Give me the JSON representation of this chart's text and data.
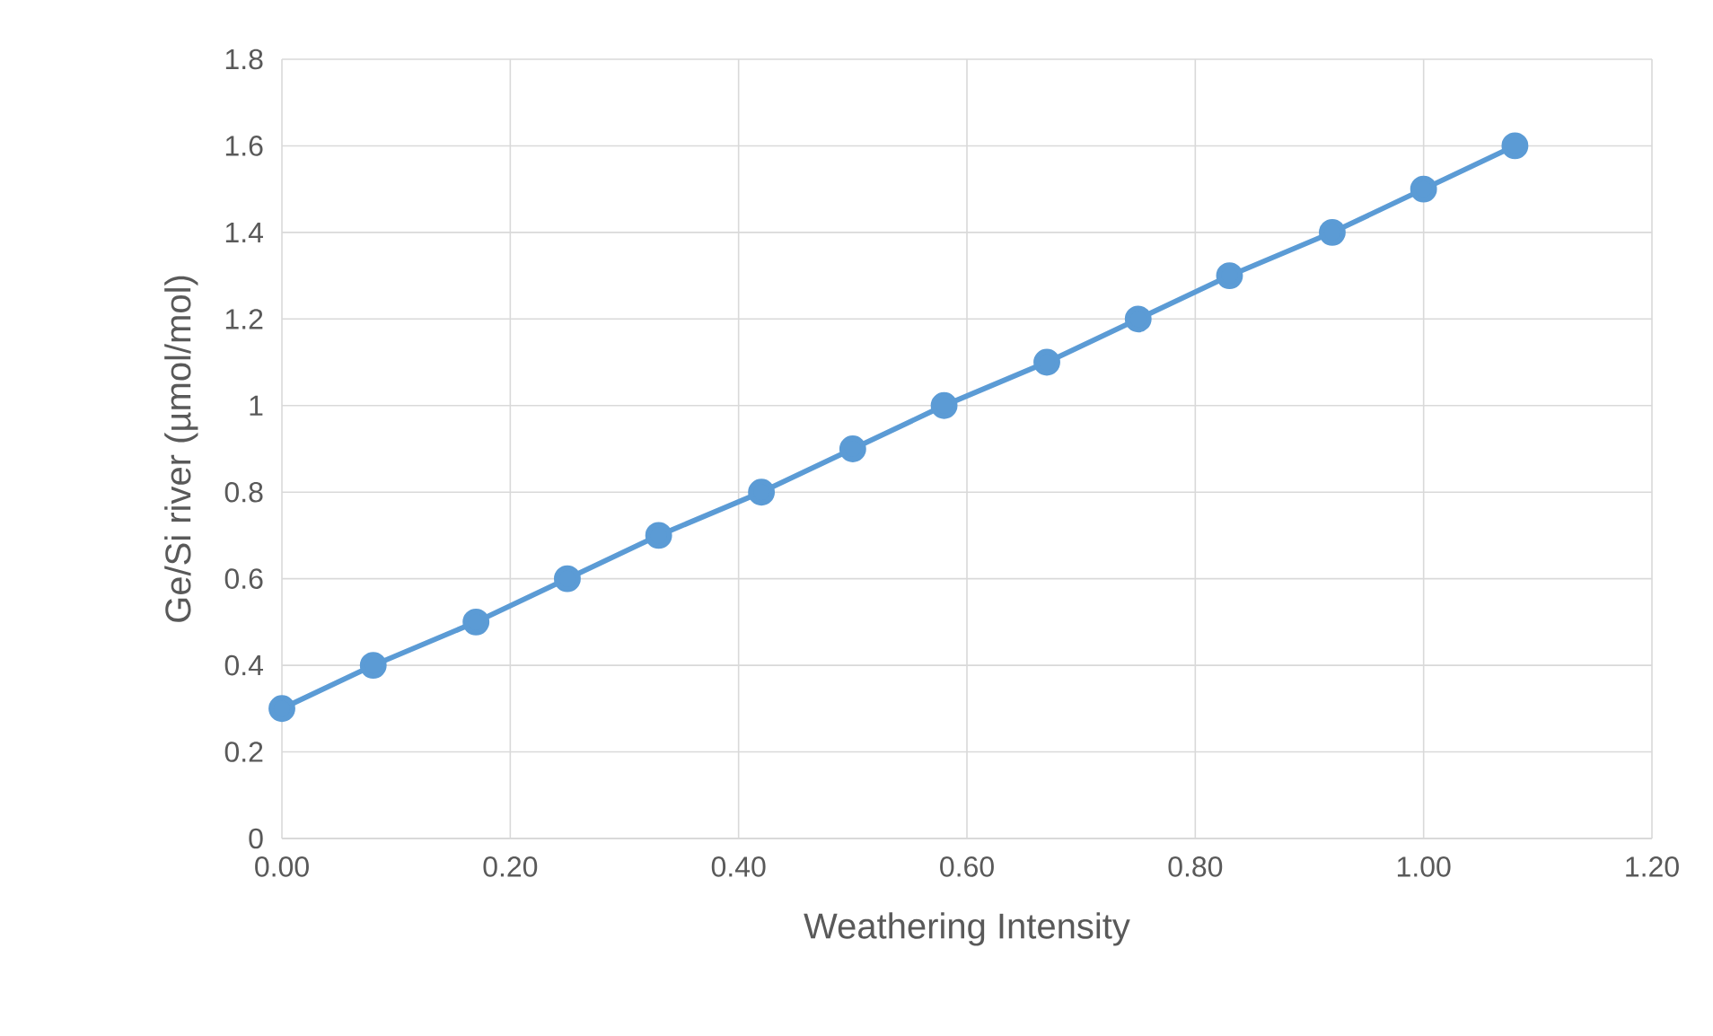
{
  "chart_data": {
    "type": "line",
    "xlabel": "Weathering Intensity",
    "ylabel": "Ge/Si river (µmol/mol)",
    "x": [
      0,
      0.08,
      0.17,
      0.25,
      0.33,
      0.42,
      0.5,
      0.58,
      0.67,
      0.75,
      0.83,
      0.92,
      1.0,
      1.08
    ],
    "values": [
      0.3,
      0.4,
      0.5,
      0.6,
      0.7,
      0.8,
      0.9,
      1.0,
      1.1,
      1.2,
      1.3,
      1.4,
      1.5,
      1.6
    ],
    "color": "#5b9bd5",
    "marker": "circle",
    "line_style": "solid",
    "grid": true,
    "xlim": [
      0,
      1.2
    ],
    "xticks": [
      {
        "value": 0,
        "label": "0.00"
      },
      {
        "value": 0.2,
        "label": "0.20"
      },
      {
        "value": 0.4,
        "label": "0.40"
      },
      {
        "value": 0.6,
        "label": "0.60"
      },
      {
        "value": 0.8,
        "label": "0.80"
      },
      {
        "value": 1.0,
        "label": "1.00"
      },
      {
        "value": 1.2,
        "label": "1.20"
      }
    ],
    "ylim": [
      0,
      1.8
    ],
    "yticks": [
      0,
      0.2,
      0.4,
      0.6,
      0.8,
      1,
      1.2,
      1.4,
      1.6,
      1.8
    ]
  }
}
